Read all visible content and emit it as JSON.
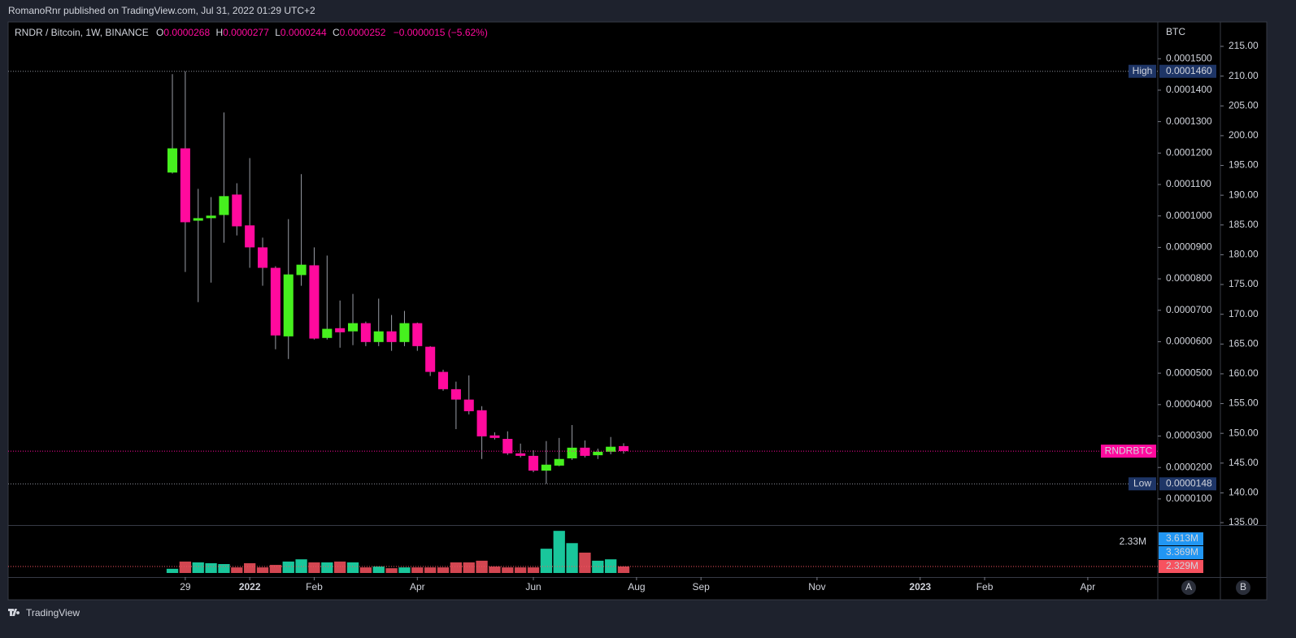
{
  "header": {
    "publisher": "RomanoRnr published on TradingView.com, Jul 31, 2022 01:29 UTC+2",
    "brand": "TradingView"
  },
  "chart_data": {
    "type": "candlestick",
    "title": "RNDR / Bitcoin, 1W, BINANCE",
    "ohlc_keys": [
      "O",
      "H",
      "L",
      "C"
    ],
    "change": "−0.0000015 (−5.62%)",
    "symbol": "RNDRBTC",
    "axis_label": "BTC",
    "up_color": "#46f01e",
    "down_color": "#ff0a9d",
    "volume_up_color": "#1de9b6",
    "volume_down_color": "#f7525f",
    "open": [
      0.0001138,
      0.0001215,
      9.85e-05,
      9.93e-05,
      0.0001003,
      0.0001068,
      9.7e-05,
      9e-05,
      8.35e-05,
      6.17e-05,
      8.12e-05,
      8.43e-05,
      6.12e-05,
      6.43e-05,
      6.33e-05,
      6.59e-05,
      5.99e-05,
      6.33e-05,
      5.99e-05,
      6.59e-05,
      5.84e-05,
      5.04e-05,
      4.49e-05,
      4.16e-05,
      3.82e-05,
      3.02e-05,
      2.91e-05,
      2.45e-05,
      2.37e-05,
      1.9e-05,
      2.06e-05,
      2.29e-05,
      2.63e-05,
      2.39e-05,
      2.5e-05,
      2.68e-05
    ],
    "high": [
      0.0001451,
      0.000146,
      0.0001086,
      0.000106,
      0.0001329,
      0.0001104,
      0.0001184,
      9.31e-05,
      8.4e-05,
      9.9e-05,
      0.0001133,
      9e-05,
      8.74e-05,
      7.31e-05,
      7.52e-05,
      6.64e-05,
      7.37e-05,
      6.85e-05,
      6.98e-05,
      6.61e-05,
      5.86e-05,
      5.11e-05,
      4.73e-05,
      4.93e-05,
      3.95e-05,
      3.12e-05,
      3.15e-05,
      2.76e-05,
      2.55e-05,
      2.84e-05,
      2.94e-05,
      3.35e-05,
      2.86e-05,
      2.6e-05,
      2.97e-05,
      2.77e-05
    ],
    "low": [
      0.0001135,
      8.22e-05,
      7.26e-05,
      7.88e-05,
      9.15e-05,
      9.38e-05,
      8.35e-05,
      7.78e-05,
      5.76e-05,
      5.45e-05,
      7.78e-05,
      6.07e-05,
      6.07e-05,
      5.81e-05,
      5.89e-05,
      5.86e-05,
      5.86e-05,
      5.71e-05,
      5.86e-05,
      5.71e-05,
      4.91e-05,
      4.44e-05,
      3.22e-05,
      3.69e-05,
      2.27e-05,
      2.89e-05,
      2.4e-05,
      2.32e-05,
      1.85e-05,
      1.48e-05,
      2.04e-05,
      2.24e-05,
      2.32e-05,
      2.27e-05,
      2.42e-05,
      2.44e-05
    ],
    "close": [
      0.0001215,
      9.8e-05,
      9.93e-05,
      0.0001001,
      0.0001063,
      9.67e-05,
      9e-05,
      8.35e-05,
      6.2e-05,
      8.14e-05,
      8.45e-05,
      6.1e-05,
      6.41e-05,
      6.3e-05,
      6.59e-05,
      5.99e-05,
      6.33e-05,
      5.99e-05,
      6.59e-05,
      5.86e-05,
      5.04e-05,
      4.49e-05,
      4.16e-05,
      3.79e-05,
      2.99e-05,
      2.94e-05,
      2.45e-05,
      2.37e-05,
      1.9e-05,
      2.09e-05,
      2.27e-05,
      2.63e-05,
      2.37e-05,
      2.5e-05,
      2.66e-05,
      2.52e-05
    ],
    "volume": [
      1500000,
      4100000,
      3800000,
      3500000,
      3200000,
      2000000,
      3500000,
      2000000,
      2900000,
      4100000,
      4900000,
      3800000,
      3800000,
      4100000,
      3800000,
      2000000,
      2300000,
      1700000,
      2000000,
      2000000,
      2000000,
      2000000,
      3800000,
      3800000,
      4400000,
      2300000,
      2000000,
      2000000,
      2000000,
      8700000,
      15100000,
      10700000,
      7300000,
      4400000,
      4900000,
      2329000
    ],
    "volume_last_label": "2.33M",
    "volume_ylim": [
      0,
      16900000
    ],
    "volume_axis_labels": [
      {
        "value": 3613000,
        "label": "3.613M"
      },
      {
        "value": 3369000,
        "label": "3.369M"
      },
      {
        "value": 2329000,
        "label": "2.329M"
      }
    ],
    "xlim": [
      -12.74,
      76.43
    ],
    "xticks": [
      {
        "value": 1,
        "label": "29"
      },
      {
        "value": 6,
        "label": "2022"
      },
      {
        "value": 11,
        "label": "Feb"
      },
      {
        "value": 19,
        "label": "Apr"
      },
      {
        "value": 28,
        "label": "Jun"
      },
      {
        "value": 36,
        "label": "Aug"
      },
      {
        "value": 41,
        "label": "Sep"
      },
      {
        "value": 50,
        "label": "Nov"
      },
      {
        "value": 58,
        "label": "2023"
      },
      {
        "value": 63,
        "label": "Feb"
      },
      {
        "value": 71,
        "label": "Apr"
      }
    ],
    "ylim": [
      1.7e-06,
      0.0001617
    ],
    "yticks": [
      {
        "value": 1e-05,
        "label": "0.0000100"
      },
      {
        "value": 2e-05,
        "label": "0.0000200"
      },
      {
        "value": 3e-05,
        "label": "0.0000300"
      },
      {
        "value": 4e-05,
        "label": "0.0000400"
      },
      {
        "value": 5e-05,
        "label": "0.0000500"
      },
      {
        "value": 6e-05,
        "label": "0.0000600"
      },
      {
        "value": 7e-05,
        "label": "0.0000700"
      },
      {
        "value": 8e-05,
        "label": "0.0000800"
      },
      {
        "value": 9e-05,
        "label": "0.0000900"
      },
      {
        "value": 0.0001,
        "label": "0.0001000"
      },
      {
        "value": 0.00011,
        "label": "0.0001100"
      },
      {
        "value": 0.00012,
        "label": "0.0001200"
      },
      {
        "value": 0.00013,
        "label": "0.0001300"
      },
      {
        "value": 0.00014,
        "label": "0.0001400"
      },
      {
        "value": 0.00015,
        "label": "0.0001500"
      }
    ],
    "y2lim": [
      134.6,
      219.1
    ],
    "y2ticks": [
      {
        "value": 135,
        "label": "135.00"
      },
      {
        "value": 140,
        "label": "140.00"
      },
      {
        "value": 145,
        "label": "145.00"
      },
      {
        "value": 150,
        "label": "150.00"
      },
      {
        "value": 155,
        "label": "155.00"
      },
      {
        "value": 160,
        "label": "160.00"
      },
      {
        "value": 165,
        "label": "165.00"
      },
      {
        "value": 170,
        "label": "170.00"
      },
      {
        "value": 175,
        "label": "175.00"
      },
      {
        "value": 180,
        "label": "180.00"
      },
      {
        "value": 185,
        "label": "185.00"
      },
      {
        "value": 190,
        "label": "190.00"
      },
      {
        "value": 195,
        "label": "195.00"
      },
      {
        "value": 200,
        "label": "200.00"
      },
      {
        "value": 205,
        "label": "205.00"
      },
      {
        "value": 210,
        "label": "210.00"
      },
      {
        "value": 215,
        "label": "215.00"
      }
    ],
    "high_marker": {
      "label": "High",
      "value": {
        "value": 0.000146,
        "label": "0.0001460"
      }
    },
    "low_marker": {
      "label": "Low",
      "value": {
        "value": 1.48e-05,
        "label": "0.0000148"
      }
    },
    "buttons": [
      "A",
      "B"
    ]
  }
}
